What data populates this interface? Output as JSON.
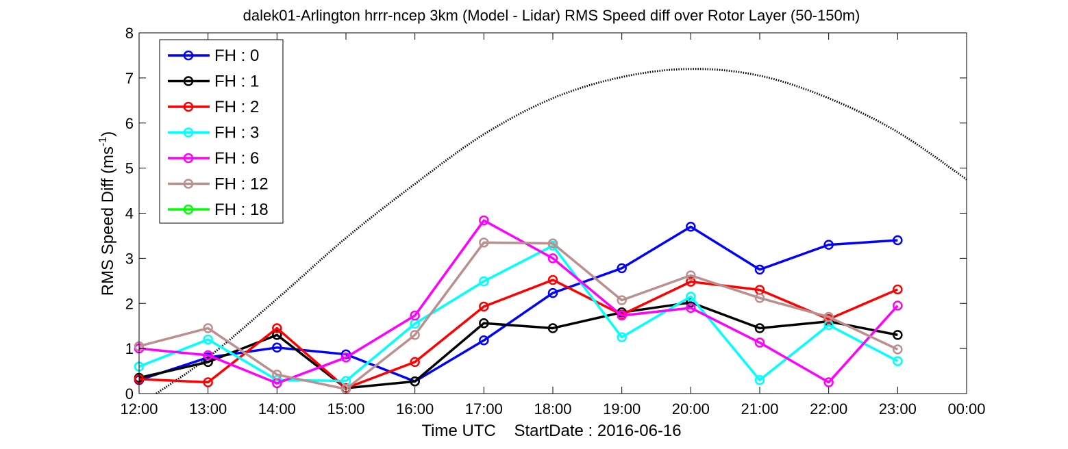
{
  "chart_data": {
    "type": "line",
    "title": "dalek01-Arlington hrrr-ncep 3km (Model - Lidar) RMS Speed diff over Rotor Layer (50-150m)",
    "xlabel": "Time UTC    StartDate : 2016-06-16",
    "ylabel_main": "RMS Speed Diff (ms",
    "ylabel_sup": "-1",
    "ylabel_close": ")",
    "x_ticks": [
      "12:00",
      "13:00",
      "14:00",
      "15:00",
      "16:00",
      "17:00",
      "18:00",
      "19:00",
      "20:00",
      "21:00",
      "22:00",
      "23:00",
      "00:00"
    ],
    "y_ticks": [
      "0",
      "1",
      "2",
      "3",
      "4",
      "5",
      "6",
      "7",
      "8"
    ],
    "ylim": [
      0,
      8
    ],
    "grid": false,
    "legend_position": "top-left",
    "series": [
      {
        "name": "FH : 0",
        "color": "#0000ff",
        "values": [
          0.3,
          0.8,
          1.02,
          0.87,
          0.27,
          1.18,
          2.23,
          2.78,
          3.7,
          2.75,
          3.3,
          3.4
        ]
      },
      {
        "name": "FH : 1",
        "color": "#000000",
        "values": [
          0.35,
          0.7,
          1.3,
          0.12,
          0.27,
          1.56,
          1.45,
          1.8,
          2.02,
          1.45,
          1.6,
          1.3
        ]
      },
      {
        "name": "FH : 2",
        "color": "#ff0000",
        "values": [
          0.32,
          0.25,
          1.45,
          0.12,
          0.7,
          1.93,
          2.52,
          1.75,
          2.48,
          2.3,
          1.65,
          2.31
        ]
      },
      {
        "name": "FH : 3",
        "color": "#00ffff",
        "values": [
          0.6,
          1.2,
          0.3,
          0.28,
          1.55,
          2.49,
          3.28,
          1.25,
          2.15,
          0.3,
          1.52,
          0.72
        ]
      },
      {
        "name": "FH : 6",
        "color": "#ff00ff",
        "values": [
          1.0,
          0.85,
          0.23,
          0.8,
          1.73,
          3.84,
          3.0,
          1.73,
          1.9,
          1.13,
          0.25,
          1.95
        ]
      },
      {
        "name": "FH : 12",
        "color": "#bc8f8f",
        "values": [
          1.05,
          1.45,
          0.42,
          0.1,
          1.3,
          3.35,
          3.33,
          2.07,
          2.62,
          2.12,
          1.7,
          0.98
        ]
      },
      {
        "name": "FH : 18",
        "color": "#00ff00",
        "values": []
      }
    ],
    "reference_curve": {
      "color": "#000000",
      "style": "dotted",
      "x_hours": [
        0.25,
        1,
        2,
        3,
        4,
        5,
        6,
        7,
        8,
        9,
        10,
        11,
        12
      ],
      "values": [
        0.0,
        0.8,
        2.1,
        3.45,
        4.65,
        5.75,
        6.55,
        7.02,
        7.2,
        7.05,
        6.55,
        5.8,
        4.75
      ]
    }
  }
}
